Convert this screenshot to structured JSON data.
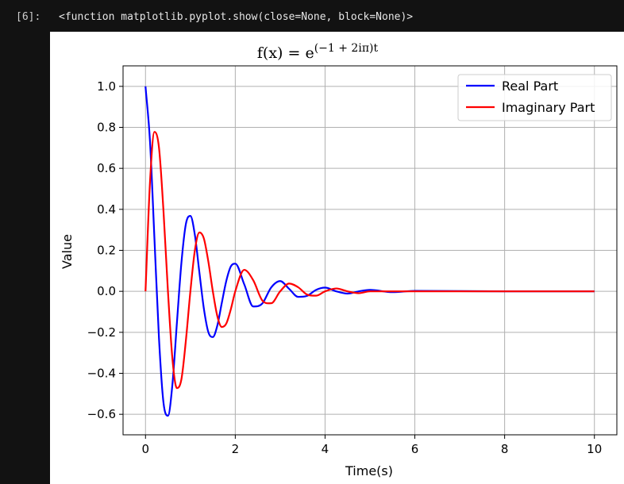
{
  "cell": {
    "prompt": "[6]:",
    "output_repr": "<function matplotlib.pyplot.show(close=None, block=None)>"
  },
  "chart_data": {
    "type": "line",
    "title_text": "f(x) = e(−1 + 2iπ)t",
    "title_parts": {
      "lhs": "f(x) = e",
      "exponent": "(−1 + 2iπ)t"
    },
    "xlabel": "Time(s)",
    "ylabel": "Value",
    "xlim": [
      -0.5,
      10.5
    ],
    "ylim": [
      -0.7,
      1.1
    ],
    "xticks": [
      0,
      2,
      4,
      6,
      8,
      10
    ],
    "xtick_labels": [
      "0",
      "2",
      "4",
      "6",
      "8",
      "10"
    ],
    "yticks": [
      -0.6,
      -0.4,
      -0.2,
      0.0,
      0.2,
      0.4,
      0.6,
      0.8,
      1.0
    ],
    "ytick_labels": [
      "−0.6",
      "−0.4",
      "−0.2",
      "0.0",
      "0.2",
      "0.4",
      "0.6",
      "0.8",
      "1.0"
    ],
    "grid": true,
    "legend_position": "top-right",
    "x": [
      0,
      0.1,
      0.2,
      0.3,
      0.4,
      0.5,
      0.6,
      0.7,
      0.8,
      0.9,
      1.0,
      1.1,
      1.2,
      1.3,
      1.4,
      1.5,
      1.6,
      1.7,
      1.8,
      1.9,
      2.0,
      2.2,
      2.4,
      2.6,
      2.8,
      3.0,
      3.2,
      3.4,
      3.6,
      3.8,
      4.0,
      4.25,
      4.5,
      4.75,
      5.0,
      5.5,
      6.0,
      7.0,
      8.0,
      9.0,
      10.0
    ],
    "series": [
      {
        "name": "Real Part",
        "color": "#0000ff",
        "values": [
          1.0,
          0.732,
          0.253,
          -0.228,
          -0.542,
          -0.607,
          -0.453,
          -0.153,
          0.139,
          0.329,
          0.368,
          0.275,
          0.093,
          -0.084,
          -0.199,
          -0.223,
          -0.167,
          -0.056,
          0.051,
          0.121,
          0.135,
          0.034,
          -0.074,
          -0.06,
          0.019,
          0.05,
          0.012,
          -0.027,
          -0.022,
          0.007,
          0.018,
          0.0,
          -0.011,
          0.0,
          0.007,
          -0.004,
          0.002,
          0.001,
          0.0,
          0.0,
          0.0
        ]
      },
      {
        "name": "Imaginary Part",
        "color": "#ff0000",
        "values": [
          0.0,
          0.532,
          0.778,
          0.702,
          0.394,
          0.0,
          -0.33,
          -0.472,
          -0.429,
          -0.239,
          0.0,
          0.2,
          0.287,
          0.258,
          0.145,
          0.0,
          -0.121,
          -0.174,
          -0.157,
          -0.088,
          0.0,
          0.105,
          0.054,
          -0.044,
          -0.058,
          0.0,
          0.038,
          0.02,
          -0.016,
          -0.021,
          0.0,
          0.014,
          0.0,
          -0.009,
          0.0,
          0.0,
          0.0,
          0.0,
          0.0,
          0.0,
          0.0
        ]
      }
    ]
  }
}
